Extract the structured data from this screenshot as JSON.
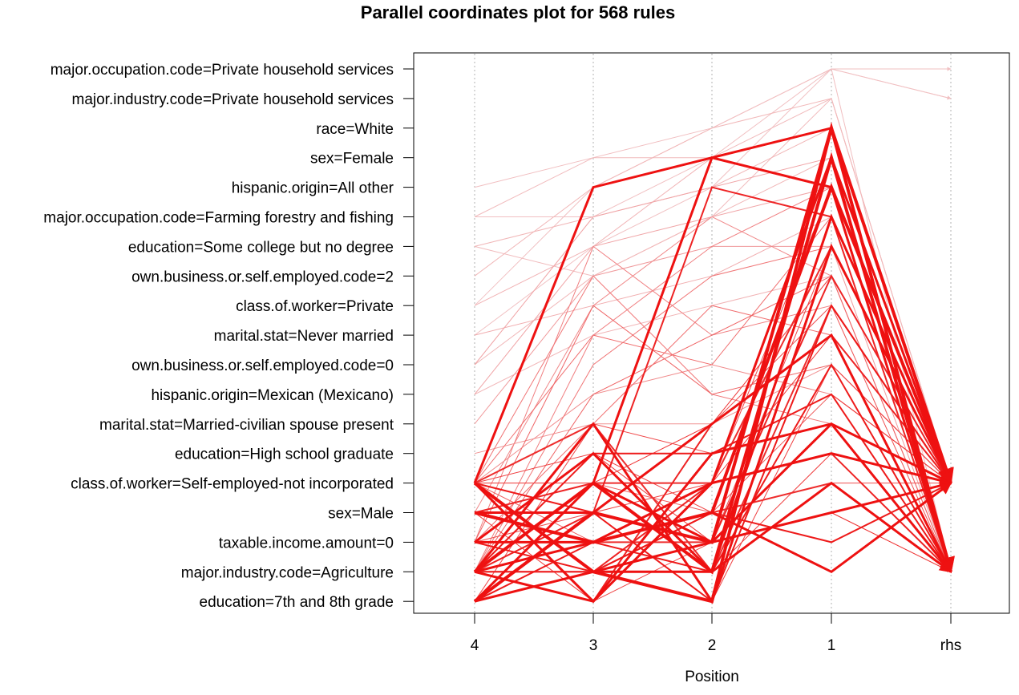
{
  "chart_data": {
    "type": "parallel-coordinates",
    "title": "Parallel coordinates plot for 568 rules",
    "xlabel": "Position",
    "ylabel": "",
    "x_ticks": [
      "4",
      "3",
      "2",
      "1",
      "rhs"
    ],
    "y_categories": [
      "major.occupation.code=Private household services",
      "major.industry.code=Private household services",
      "race=White",
      "sex=Female",
      "hispanic.origin=All other",
      "major.occupation.code=Farming forestry and fishing",
      "education=Some college but no degree",
      "own.business.or.self.employed.code=2",
      "class.of.worker=Private",
      "marital.stat=Never married",
      "own.business.or.self.employed.code=0",
      "hispanic.origin=Mexican (Mexicano)",
      "marital.stat=Married-civilian spouse present",
      "education=High school graduate",
      "class.of.worker=Self-employed-not incorporated",
      "sex=Male",
      "taxable.income.amount=0",
      "major.industry.code=Agriculture",
      "education=7th and 8th grade"
    ],
    "grid": "vertical dotted",
    "line_color": "#ee1111",
    "light_color": "#f1c9cb",
    "rules": [
      {
        "path": [
          18,
          15,
          16,
          2,
          14
        ],
        "weight": 4,
        "shade": 1
      },
      {
        "path": [
          17,
          14,
          17,
          3,
          17
        ],
        "weight": 4,
        "shade": 1
      },
      {
        "path": [
          15,
          16,
          15,
          4,
          14
        ],
        "weight": 4,
        "shade": 1
      },
      {
        "path": [
          14,
          17,
          18,
          2,
          17
        ],
        "weight": 4,
        "shade": 1
      },
      {
        "path": [
          17,
          16,
          14,
          13,
          14
        ],
        "weight": 3,
        "shade": 1
      },
      {
        "path": [
          14,
          4,
          3,
          2,
          17
        ],
        "weight": 3,
        "shade": 1
      },
      {
        "path": [
          17,
          18,
          13,
          12,
          14
        ],
        "weight": 3,
        "shade": 1
      },
      {
        "path": [
          16,
          13,
          17,
          5,
          14
        ],
        "weight": 3,
        "shade": 1
      },
      {
        "path": [
          18,
          14,
          16,
          12,
          17
        ],
        "weight": 3,
        "shade": 1
      },
      {
        "path": [
          14,
          17,
          16,
          15,
          14
        ],
        "weight": 3,
        "shade": 1
      },
      {
        "path": [
          15,
          15,
          12,
          9,
          17
        ],
        "weight": 3,
        "shade": 1
      },
      {
        "path": [
          17,
          12,
          18,
          6,
          14
        ],
        "weight": 3,
        "shade": 1
      },
      {
        "path": [
          18,
          17,
          17,
          14,
          17
        ],
        "weight": 3,
        "shade": 1
      },
      {
        "path": [
          14,
          18,
          14,
          3,
          14
        ],
        "weight": 3,
        "shade": 1
      },
      {
        "path": [
          16,
          16,
          15,
          17,
          14
        ],
        "weight": 3,
        "shade": 1
      },
      {
        "path": [
          17,
          14,
          3,
          4,
          17
        ],
        "weight": 3,
        "shade": 1
      },
      {
        "path": [
          14,
          15,
          18,
          8,
          14
        ],
        "weight": 2,
        "shade": 0.95
      },
      {
        "path": [
          17,
          13,
          13,
          11,
          17
        ],
        "weight": 2,
        "shade": 0.95
      },
      {
        "path": [
          16,
          17,
          15,
          16,
          14
        ],
        "weight": 2,
        "shade": 0.95
      },
      {
        "path": [
          18,
          16,
          17,
          10,
          17
        ],
        "weight": 2,
        "shade": 0.95
      },
      {
        "path": [
          15,
          14,
          16,
          7,
          14
        ],
        "weight": 2,
        "shade": 0.9
      },
      {
        "path": [
          17,
          17,
          14,
          13,
          17
        ],
        "weight": 2,
        "shade": 0.9
      },
      {
        "path": [
          14,
          18,
          12,
          9,
          14
        ],
        "weight": 2,
        "shade": 0.9
      },
      {
        "path": [
          17,
          15,
          4,
          5,
          17
        ],
        "weight": 2,
        "shade": 0.9
      },
      {
        "path": [
          18,
          14,
          14,
          6,
          14
        ],
        "weight": 2,
        "shade": 0.85
      },
      {
        "path": [
          16,
          16,
          16,
          12,
          17
        ],
        "weight": 2,
        "shade": 0.85
      },
      {
        "path": [
          14,
          12,
          17,
          8,
          14
        ],
        "weight": 2,
        "shade": 0.85
      },
      {
        "path": [
          17,
          17,
          15,
          14,
          17
        ],
        "weight": 2,
        "shade": 0.85
      },
      {
        "path": [
          15,
          18,
          13,
          11,
          14
        ],
        "weight": 1,
        "shade": 0.8
      },
      {
        "path": [
          17,
          13,
          16,
          15,
          17
        ],
        "weight": 1,
        "shade": 0.8
      },
      {
        "path": [
          14,
          14,
          12,
          7,
          14
        ],
        "weight": 1,
        "shade": 0.8
      },
      {
        "path": [
          18,
          15,
          14,
          9,
          17
        ],
        "weight": 1,
        "shade": 0.8
      },
      {
        "path": [
          16,
          17,
          18,
          10,
          14
        ],
        "weight": 1,
        "shade": 0.75
      },
      {
        "path": [
          17,
          16,
          17,
          13,
          17
        ],
        "weight": 1,
        "shade": 0.75
      },
      {
        "path": [
          14,
          13,
          15,
          16,
          14
        ],
        "weight": 1,
        "shade": 0.75
      },
      {
        "path": [
          15,
          14,
          14,
          4,
          17
        ],
        "weight": 1,
        "shade": 0.7
      },
      {
        "path": [
          17,
          18,
          16,
          6,
          14
        ],
        "weight": 1,
        "shade": 0.7
      },
      {
        "path": [
          18,
          12,
          13,
          12,
          17
        ],
        "weight": 1,
        "shade": 0.7
      },
      {
        "path": [
          14,
          17,
          17,
          14,
          14
        ],
        "weight": 1,
        "shade": 0.65
      },
      {
        "path": [
          16,
          15,
          12,
          8,
          17
        ],
        "weight": 1,
        "shade": 0.65
      },
      {
        "path": [
          17,
          14,
          15,
          11,
          14
        ],
        "weight": 1,
        "shade": 0.6
      },
      {
        "path": [
          14,
          16,
          16,
          15,
          17
        ],
        "weight": 1,
        "shade": 0.6
      },
      {
        "path": [
          16,
          8,
          11,
          10,
          14
        ],
        "weight": 1,
        "shade": 0.55
      },
      {
        "path": [
          17,
          11,
          9,
          7,
          17
        ],
        "weight": 1,
        "shade": 0.55
      },
      {
        "path": [
          14,
          9,
          10,
          5,
          14
        ],
        "weight": 1,
        "shade": 0.5
      },
      {
        "path": [
          16,
          12,
          8,
          9,
          17
        ],
        "weight": 1,
        "shade": 0.5
      },
      {
        "path": [
          17,
          10,
          7,
          6,
          14
        ],
        "weight": 1,
        "shade": 0.45
      },
      {
        "path": [
          14,
          7,
          11,
          12,
          17
        ],
        "weight": 1,
        "shade": 0.45
      },
      {
        "path": [
          16,
          6,
          9,
          8,
          14
        ],
        "weight": 1,
        "shade": 0.4
      },
      {
        "path": [
          17,
          9,
          6,
          4,
          17
        ],
        "weight": 1,
        "shade": 0.4
      },
      {
        "path": [
          14,
          11,
          10,
          11,
          14
        ],
        "weight": 1,
        "shade": 0.35
      },
      {
        "path": [
          15,
          8,
          5,
          7,
          17
        ],
        "weight": 1,
        "shade": 0.35
      },
      {
        "path": [
          13,
          12,
          12,
          10,
          14
        ],
        "weight": 1,
        "shade": 0.3
      },
      {
        "path": [
          12,
          7,
          6,
          6,
          17
        ],
        "weight": 1,
        "shade": 0.25
      },
      {
        "path": [
          11,
          6,
          5,
          4,
          14
        ],
        "weight": 1,
        "shade": 0.2
      },
      {
        "path": [
          10,
          5,
          4,
          3,
          17
        ],
        "weight": 1,
        "shade": 0.2
      },
      {
        "path": [
          9,
          8,
          7,
          5,
          14
        ],
        "weight": 1,
        "shade": 0.15
      },
      {
        "path": [
          8,
          6,
          3,
          2,
          17
        ],
        "weight": 1,
        "shade": 0.12
      },
      {
        "path": [
          7,
          4,
          2,
          1,
          14
        ],
        "weight": 1,
        "shade": 0.1
      },
      {
        "path": [
          6,
          5,
          4,
          2,
          17
        ],
        "weight": 1,
        "shade": 0.1
      },
      {
        "path": [
          5,
          3,
          3,
          1,
          14
        ],
        "weight": 1,
        "shade": 0.08
      },
      {
        "path": [
          4,
          3,
          2,
          0,
          17
        ],
        "weight": 1,
        "shade": 0.06
      },
      {
        "path": [
          6,
          7,
          5,
          1,
          14
        ],
        "weight": 1,
        "shade": 0.08
      },
      {
        "path": [
          8,
          4,
          2,
          0,
          1
        ],
        "weight": 1,
        "shade": 0.05
      },
      {
        "path": [
          5,
          5,
          3,
          0,
          0
        ],
        "weight": 1,
        "shade": 0.05
      },
      {
        "path": [
          9,
          6,
          4,
          0,
          1
        ],
        "weight": 1,
        "shade": 0.05
      },
      {
        "path": [
          10,
          7,
          5,
          3,
          14
        ],
        "weight": 1,
        "shade": 0.1
      },
      {
        "path": [
          11,
          9,
          8,
          7,
          17
        ],
        "weight": 1,
        "shade": 0.12
      }
    ]
  }
}
